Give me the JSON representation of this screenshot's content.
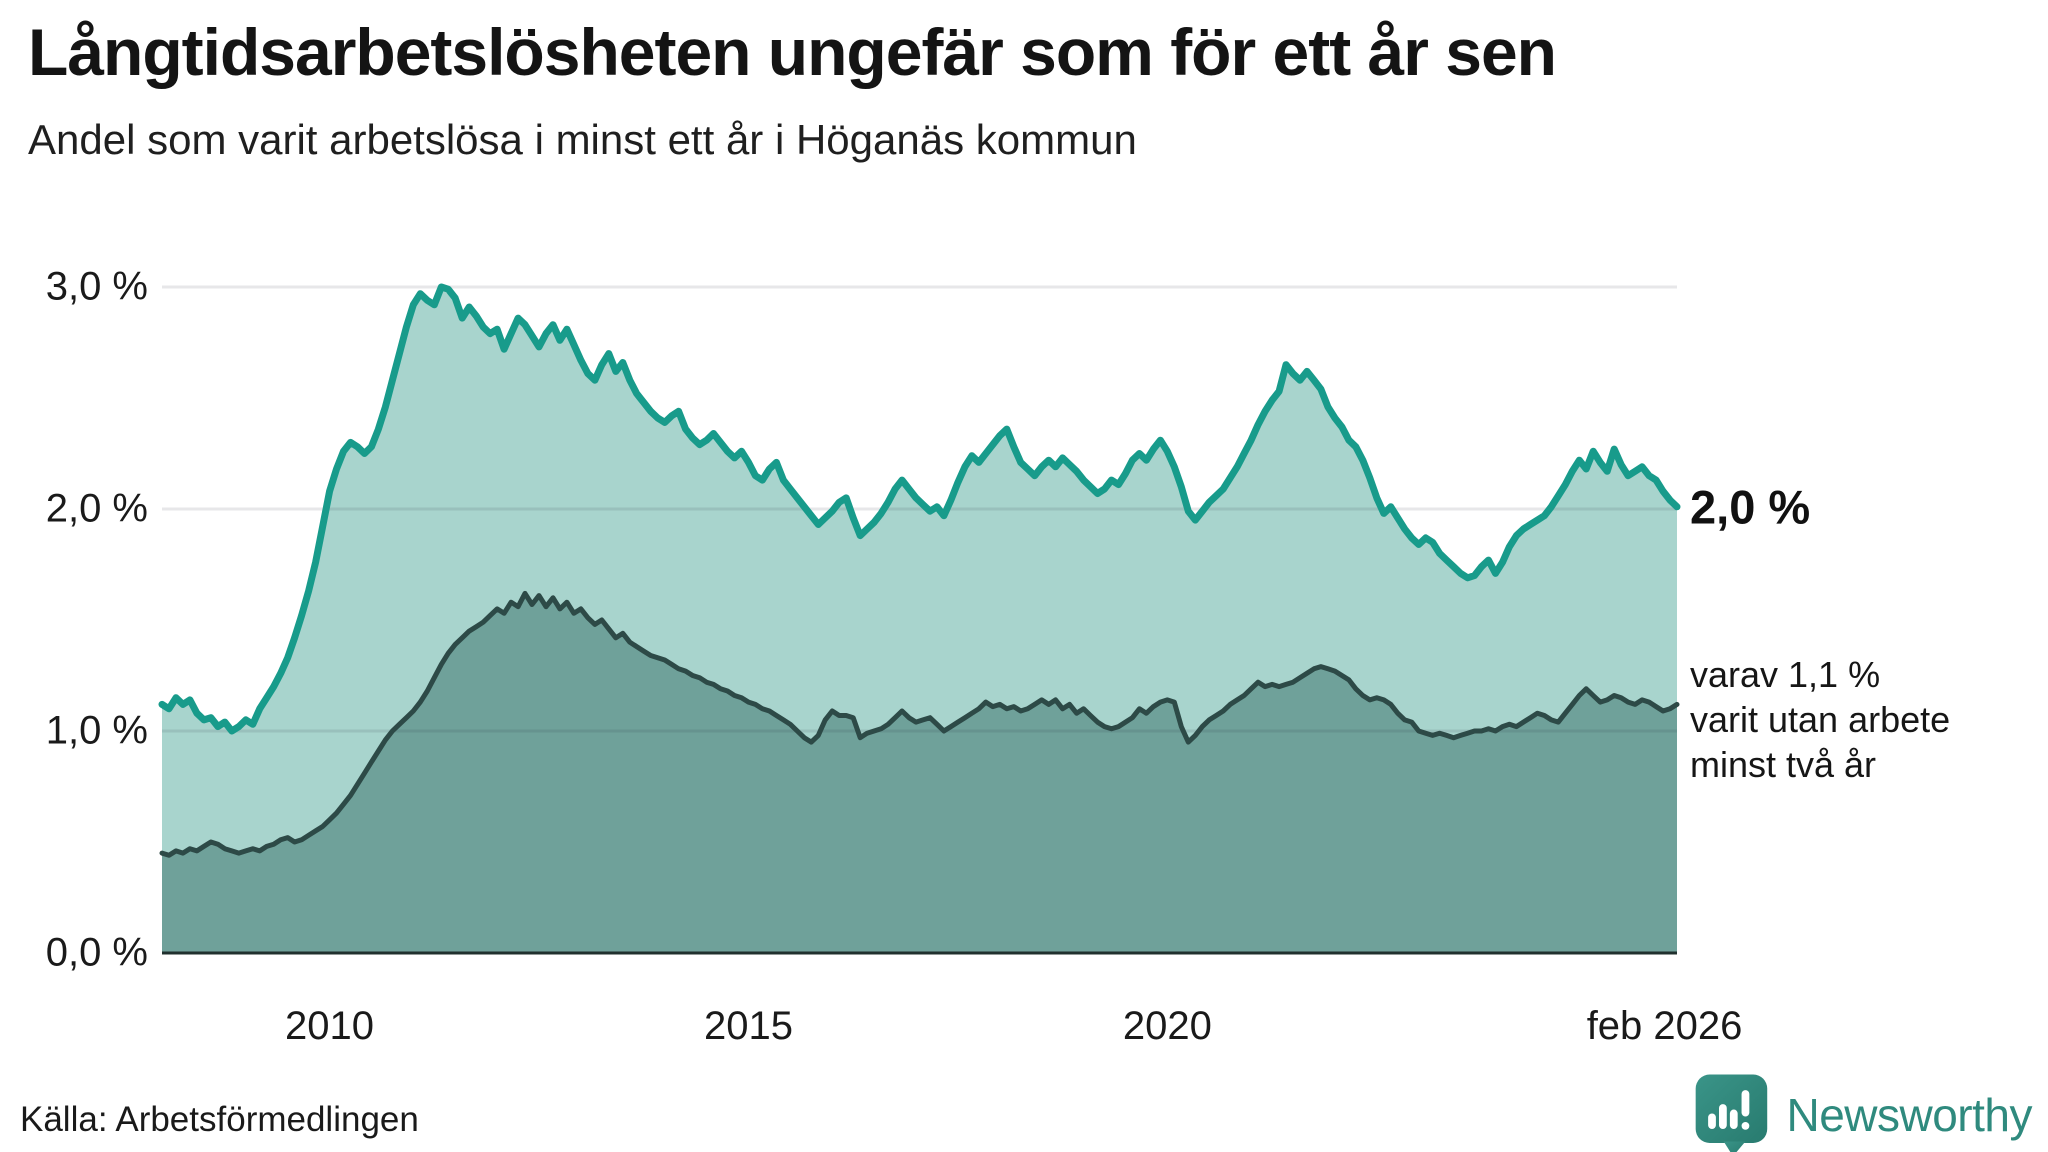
{
  "header": {
    "title": "Långtidsarbetslösheten ungefär som för ett år sen",
    "subtitle": "Andel som varit arbetslösa i minst ett år i Höganäs kommun"
  },
  "chart_data": {
    "type": "area",
    "title": "Långtidsarbetslösheten ungefär som för ett år sen",
    "subtitle": "Andel som varit arbetslösa i minst ett år i Höganäs kommun",
    "x_domain": [
      2008.0,
      2026.083
    ],
    "x_step_months": 1,
    "ylim": [
      0,
      3.2
    ],
    "grid": "horizontal",
    "y_ticks": [
      {
        "value": 3,
        "label": "3,0 %"
      },
      {
        "value": 2,
        "label": "2,0 %"
      },
      {
        "value": 1,
        "label": "1,0 %"
      },
      {
        "value": 0,
        "label": "0,0 %"
      }
    ],
    "x_ticks": [
      {
        "value": 2010,
        "label": "2010"
      },
      {
        "value": 2015,
        "label": "2015"
      },
      {
        "value": 2020,
        "label": "2020"
      },
      {
        "value": 2026.083,
        "label": "feb 2026"
      }
    ],
    "end_labels": {
      "primary": "2,0 %",
      "secondary_lines": [
        "varav 1,1 %",
        "varit utan arbete",
        "minst två år"
      ]
    },
    "colors": {
      "line_one_year": "#189b8b",
      "fill_one_year": "#a8d4cd",
      "line_two_years": "#2d4a47",
      "fill_two_years": "#6fa19a",
      "gridline": "rgba(35,35,55,0.11)",
      "baseline": "#20302e"
    },
    "series": [
      {
        "name": "Andel arbetslösa minst ett år",
        "values": [
          1.12,
          1.1,
          1.15,
          1.12,
          1.14,
          1.08,
          1.05,
          1.06,
          1.02,
          1.04,
          1.0,
          1.02,
          1.05,
          1.03,
          1.1,
          1.15,
          1.2,
          1.26,
          1.33,
          1.42,
          1.52,
          1.63,
          1.76,
          1.92,
          2.08,
          2.18,
          2.26,
          2.3,
          2.28,
          2.25,
          2.28,
          2.36,
          2.46,
          2.58,
          2.7,
          2.82,
          2.92,
          2.97,
          2.94,
          2.92,
          3.0,
          2.99,
          2.95,
          2.86,
          2.91,
          2.87,
          2.82,
          2.79,
          2.81,
          2.72,
          2.79,
          2.86,
          2.83,
          2.78,
          2.73,
          2.79,
          2.83,
          2.76,
          2.81,
          2.74,
          2.67,
          2.61,
          2.58,
          2.65,
          2.7,
          2.62,
          2.66,
          2.58,
          2.52,
          2.48,
          2.44,
          2.41,
          2.39,
          2.42,
          2.44,
          2.36,
          2.32,
          2.29,
          2.31,
          2.34,
          2.3,
          2.26,
          2.23,
          2.26,
          2.21,
          2.15,
          2.13,
          2.18,
          2.21,
          2.13,
          2.09,
          2.05,
          2.01,
          1.97,
          1.93,
          1.96,
          1.99,
          2.03,
          2.05,
          1.96,
          1.88,
          1.91,
          1.94,
          1.98,
          2.03,
          2.09,
          2.13,
          2.09,
          2.05,
          2.02,
          1.99,
          2.01,
          1.97,
          2.04,
          2.12,
          2.19,
          2.24,
          2.21,
          2.25,
          2.29,
          2.33,
          2.36,
          2.28,
          2.21,
          2.18,
          2.15,
          2.19,
          2.22,
          2.19,
          2.23,
          2.2,
          2.17,
          2.13,
          2.1,
          2.07,
          2.09,
          2.13,
          2.11,
          2.16,
          2.22,
          2.25,
          2.22,
          2.27,
          2.31,
          2.26,
          2.19,
          2.1,
          1.99,
          1.95,
          1.99,
          2.03,
          2.06,
          2.09,
          2.14,
          2.19,
          2.25,
          2.31,
          2.38,
          2.44,
          2.49,
          2.53,
          2.65,
          2.61,
          2.58,
          2.62,
          2.58,
          2.54,
          2.46,
          2.41,
          2.37,
          2.31,
          2.28,
          2.22,
          2.14,
          2.05,
          1.98,
          2.01,
          1.96,
          1.91,
          1.87,
          1.84,
          1.87,
          1.85,
          1.8,
          1.77,
          1.74,
          1.71,
          1.69,
          1.7,
          1.74,
          1.77,
          1.71,
          1.76,
          1.83,
          1.88,
          1.91,
          1.93,
          1.95,
          1.97,
          2.01,
          2.06,
          2.11,
          2.17,
          2.22,
          2.18,
          2.26,
          2.21,
          2.17,
          2.27,
          2.2,
          2.15,
          2.17,
          2.19,
          2.15,
          2.13,
          2.08,
          2.04,
          2.01
        ]
      },
      {
        "name": "Andel arbetslösa minst två år",
        "values": [
          0.45,
          0.44,
          0.46,
          0.45,
          0.47,
          0.46,
          0.48,
          0.5,
          0.49,
          0.47,
          0.46,
          0.45,
          0.46,
          0.47,
          0.46,
          0.48,
          0.49,
          0.51,
          0.52,
          0.5,
          0.51,
          0.53,
          0.55,
          0.57,
          0.6,
          0.63,
          0.67,
          0.71,
          0.76,
          0.81,
          0.86,
          0.91,
          0.96,
          1.0,
          1.03,
          1.06,
          1.09,
          1.13,
          1.18,
          1.24,
          1.3,
          1.35,
          1.39,
          1.42,
          1.45,
          1.47,
          1.49,
          1.52,
          1.55,
          1.53,
          1.58,
          1.56,
          1.62,
          1.57,
          1.61,
          1.56,
          1.6,
          1.55,
          1.58,
          1.53,
          1.55,
          1.51,
          1.48,
          1.5,
          1.46,
          1.42,
          1.44,
          1.4,
          1.38,
          1.36,
          1.34,
          1.33,
          1.32,
          1.3,
          1.28,
          1.27,
          1.25,
          1.24,
          1.22,
          1.21,
          1.19,
          1.18,
          1.16,
          1.15,
          1.13,
          1.12,
          1.1,
          1.09,
          1.07,
          1.05,
          1.03,
          1.0,
          0.97,
          0.95,
          0.98,
          1.05,
          1.09,
          1.07,
          1.07,
          1.06,
          0.97,
          0.99,
          1.0,
          1.01,
          1.03,
          1.06,
          1.09,
          1.06,
          1.04,
          1.05,
          1.06,
          1.03,
          1.0,
          1.02,
          1.04,
          1.06,
          1.08,
          1.1,
          1.13,
          1.11,
          1.12,
          1.1,
          1.11,
          1.09,
          1.1,
          1.12,
          1.14,
          1.12,
          1.14,
          1.1,
          1.12,
          1.08,
          1.1,
          1.07,
          1.04,
          1.02,
          1.01,
          1.02,
          1.04,
          1.06,
          1.1,
          1.08,
          1.11,
          1.13,
          1.14,
          1.13,
          1.02,
          0.95,
          0.98,
          1.02,
          1.05,
          1.07,
          1.09,
          1.12,
          1.14,
          1.16,
          1.19,
          1.22,
          1.2,
          1.21,
          1.2,
          1.21,
          1.22,
          1.24,
          1.26,
          1.28,
          1.29,
          1.28,
          1.27,
          1.25,
          1.23,
          1.19,
          1.16,
          1.14,
          1.15,
          1.14,
          1.12,
          1.08,
          1.05,
          1.04,
          1.0,
          0.99,
          0.98,
          0.99,
          0.98,
          0.97,
          0.98,
          0.99,
          1.0,
          1.0,
          1.01,
          1.0,
          1.02,
          1.03,
          1.02,
          1.04,
          1.06,
          1.08,
          1.07,
          1.05,
          1.04,
          1.08,
          1.12,
          1.16,
          1.19,
          1.16,
          1.13,
          1.14,
          1.16,
          1.15,
          1.13,
          1.12,
          1.14,
          1.13,
          1.11,
          1.09,
          1.1,
          1.12
        ]
      }
    ]
  },
  "footer": {
    "source": "Källa: Arbetsförmedlingen",
    "brand": "Newsworthy"
  }
}
